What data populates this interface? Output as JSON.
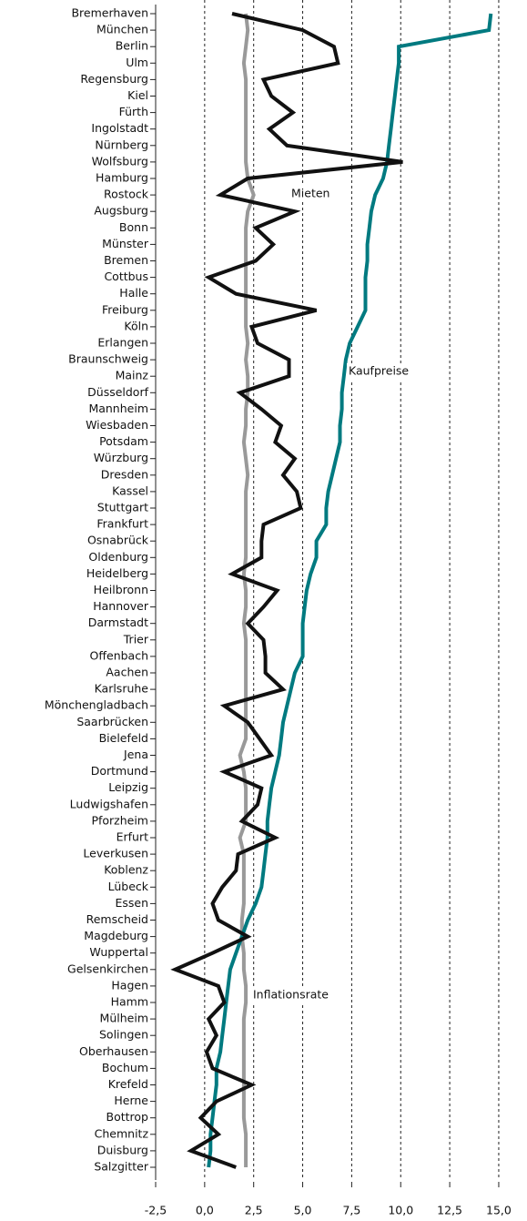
{
  "chart_data": {
    "type": "line",
    "orientation": "horizontal",
    "categories": [
      "Bremerhaven",
      "München",
      "Berlin",
      "Ulm",
      "Regensburg",
      "Kiel",
      "Fürth",
      "Ingolstadt",
      "Nürnberg",
      "Wolfsburg",
      "Hamburg",
      "Rostock",
      "Augsburg",
      "Bonn",
      "Münster",
      "Bremen",
      "Cottbus",
      "Halle",
      "Freiburg",
      "Köln",
      "Erlangen",
      "Braunschweig",
      "Mainz",
      "Düsseldorf",
      "Mannheim",
      "Wiesbaden",
      "Potsdam",
      "Würzburg",
      "Dresden",
      "Kassel",
      "Stuttgart",
      "Frankfurt",
      "Osnabrück",
      "Oldenburg",
      "Heidelberg",
      "Heilbronn",
      "Hannover",
      "Darmstadt",
      "Trier",
      "Offenbach",
      "Aachen",
      "Karlsruhe",
      "Mönchengladbach",
      "Saarbrücken",
      "Bielefeld",
      "Jena",
      "Dortmund",
      "Leipzig",
      "Ludwigshafen",
      "Pforzheim",
      "Erfurt",
      "Leverkusen",
      "Koblenz",
      "Lübeck",
      "Essen",
      "Remscheid",
      "Magdeburg",
      "Wuppertal",
      "Gelsenkirchen",
      "Hagen",
      "Hamm",
      "Mülheim",
      "Solingen",
      "Oberhausen",
      "Bochum",
      "Krefeld",
      "Herne",
      "Bottrop",
      "Chemnitz",
      "Duisburg",
      "Salzgitter"
    ],
    "series": [
      {
        "name": "Inflationsrate",
        "color": "#999999",
        "values": [
          2.1,
          2.2,
          2.1,
          2.0,
          2.1,
          2.1,
          2.1,
          2.1,
          2.1,
          2.1,
          2.2,
          2.5,
          2.2,
          2.1,
          2.1,
          2.1,
          2.1,
          2.1,
          2.1,
          2.1,
          2.2,
          2.1,
          2.2,
          2.2,
          2.1,
          2.1,
          2.0,
          2.1,
          2.2,
          2.1,
          2.1,
          2.1,
          2.1,
          2.1,
          2.0,
          2.1,
          2.1,
          2.0,
          2.1,
          2.1,
          2.1,
          2.1,
          2.1,
          2.1,
          2.1,
          1.8,
          2.0,
          2.1,
          2.1,
          2.1,
          1.8,
          2.0,
          2.0,
          2.0,
          2.0,
          1.9,
          1.9,
          2.0,
          2.0,
          2.1,
          2.1,
          2.0,
          2.0,
          2.0,
          2.0,
          2.0,
          2.0,
          2.0,
          2.1,
          2.1,
          2.1
        ]
      },
      {
        "name": "Kaufpreise",
        "color": "#007a80",
        "values": [
          14.6,
          14.5,
          9.9,
          9.9,
          9.8,
          9.7,
          9.6,
          9.5,
          9.4,
          9.3,
          9.1,
          8.7,
          8.5,
          8.4,
          8.3,
          8.3,
          8.2,
          8.2,
          8.2,
          7.8,
          7.4,
          7.2,
          7.1,
          7.0,
          7.0,
          6.9,
          6.9,
          6.7,
          6.5,
          6.3,
          6.2,
          6.2,
          5.7,
          5.7,
          5.4,
          5.2,
          5.1,
          5.0,
          5.0,
          5.0,
          4.6,
          4.4,
          4.2,
          4.0,
          3.9,
          3.8,
          3.6,
          3.4,
          3.3,
          3.2,
          3.2,
          3.1,
          3.0,
          2.9,
          2.6,
          2.2,
          1.9,
          1.6,
          1.3,
          1.2,
          1.1,
          1.0,
          0.9,
          0.8,
          0.6,
          0.6,
          0.5,
          0.4,
          0.3,
          0.3,
          0.2
        ]
      },
      {
        "name": "Mieten",
        "color": "#111111",
        "values": [
          1.4,
          5.0,
          6.6,
          6.8,
          3.0,
          3.4,
          4.5,
          3.3,
          4.2,
          10.1,
          2.2,
          0.8,
          4.6,
          2.6,
          3.5,
          2.6,
          0.2,
          1.6,
          5.7,
          2.4,
          2.7,
          4.3,
          4.3,
          1.8,
          2.9,
          3.9,
          3.6,
          4.6,
          4.0,
          4.7,
          4.9,
          3.0,
          2.9,
          2.9,
          1.4,
          3.7,
          3.0,
          2.2,
          3.0,
          3.1,
          3.1,
          4.0,
          1.0,
          2.2,
          2.8,
          3.4,
          1.0,
          2.9,
          2.7,
          1.9,
          3.6,
          1.7,
          1.6,
          0.9,
          0.4,
          0.7,
          2.2,
          0.4,
          -1.5,
          0.7,
          1.0,
          0.2,
          0.6,
          0.1,
          0.4,
          2.4,
          0.6,
          -0.2,
          0.7,
          -0.7,
          1.6
        ]
      }
    ],
    "xlim": [
      -2.5,
      15.5
    ],
    "xticks": [
      {
        "value": -2.5,
        "label": "-2,5"
      },
      {
        "value": 0,
        "label": "0,0"
      },
      {
        "value": 2.5,
        "label": "2,5"
      },
      {
        "value": 5,
        "label": "5,0"
      },
      {
        "value": 7.5,
        "label": "7,5"
      },
      {
        "value": 10,
        "label": "10,0"
      },
      {
        "value": 12.5,
        "label": "12,5"
      },
      {
        "value": 15,
        "label": "15,0"
      }
    ],
    "grid": true
  }
}
